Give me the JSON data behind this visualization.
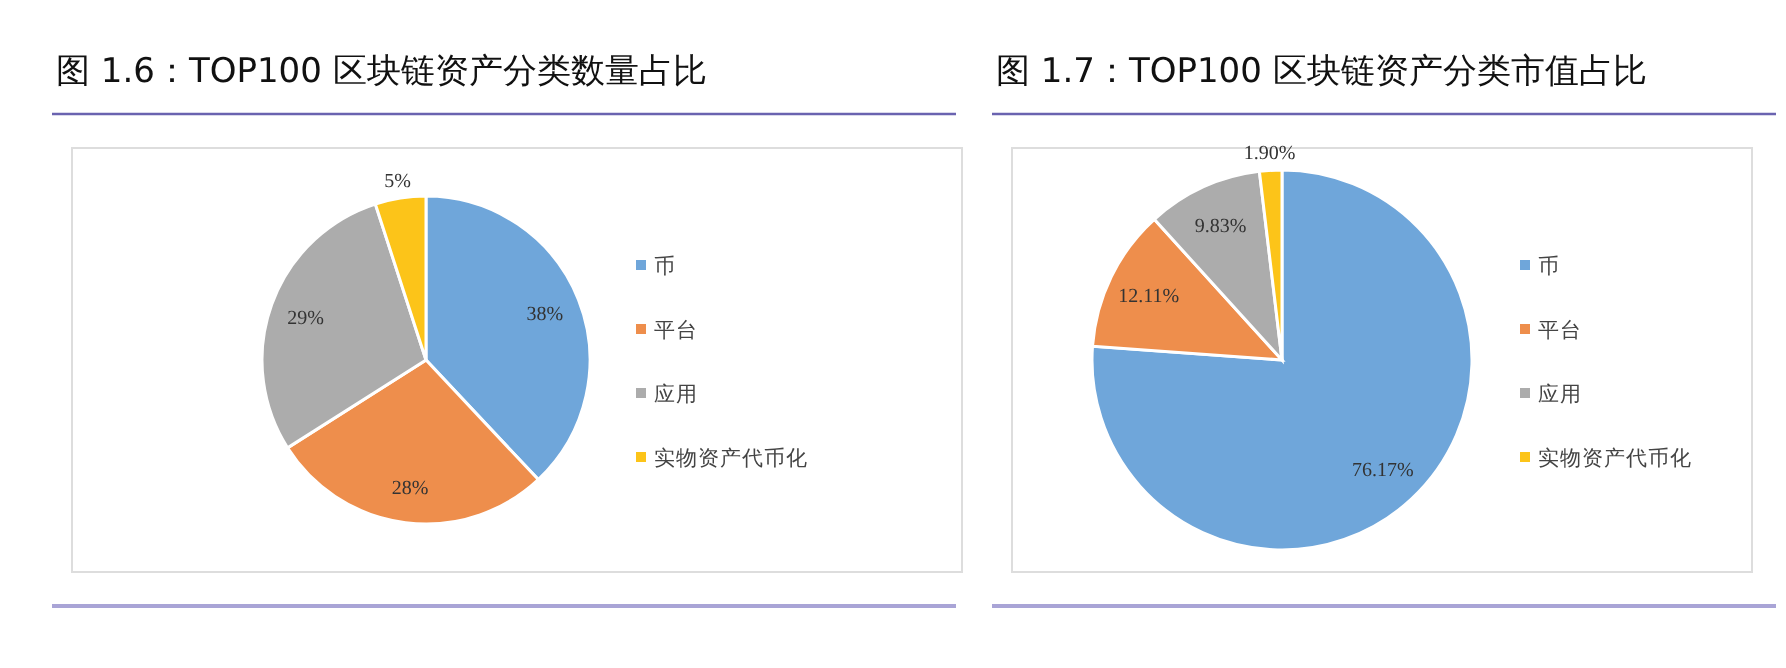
{
  "chart_data": [
    {
      "type": "pie",
      "title": "图 1.6：TOP100 区块链资产分类数量占比",
      "categories": [
        "币",
        "平台",
        "应用",
        "实物资产代币化"
      ],
      "values": [
        38,
        28,
        29,
        5
      ],
      "value_labels": [
        "38%",
        "28%",
        "29%",
        "5%"
      ],
      "colors": [
        "#6fa6da",
        "#ee8e4c",
        "#acacac",
        "#fcc419"
      ],
      "legend": "right"
    },
    {
      "type": "pie",
      "title": "图 1.7：TOP100 区块链资产分类市值占比",
      "categories": [
        "币",
        "平台",
        "应用",
        "实物资产代币化"
      ],
      "values": [
        76.17,
        12.11,
        9.83,
        1.9
      ],
      "value_labels": [
        "76.17%",
        "12.11%",
        "9.83%",
        "1.90%"
      ],
      "colors": [
        "#6fa6da",
        "#ee8e4c",
        "#acacac",
        "#fcc419"
      ],
      "legend": "right"
    }
  ]
}
